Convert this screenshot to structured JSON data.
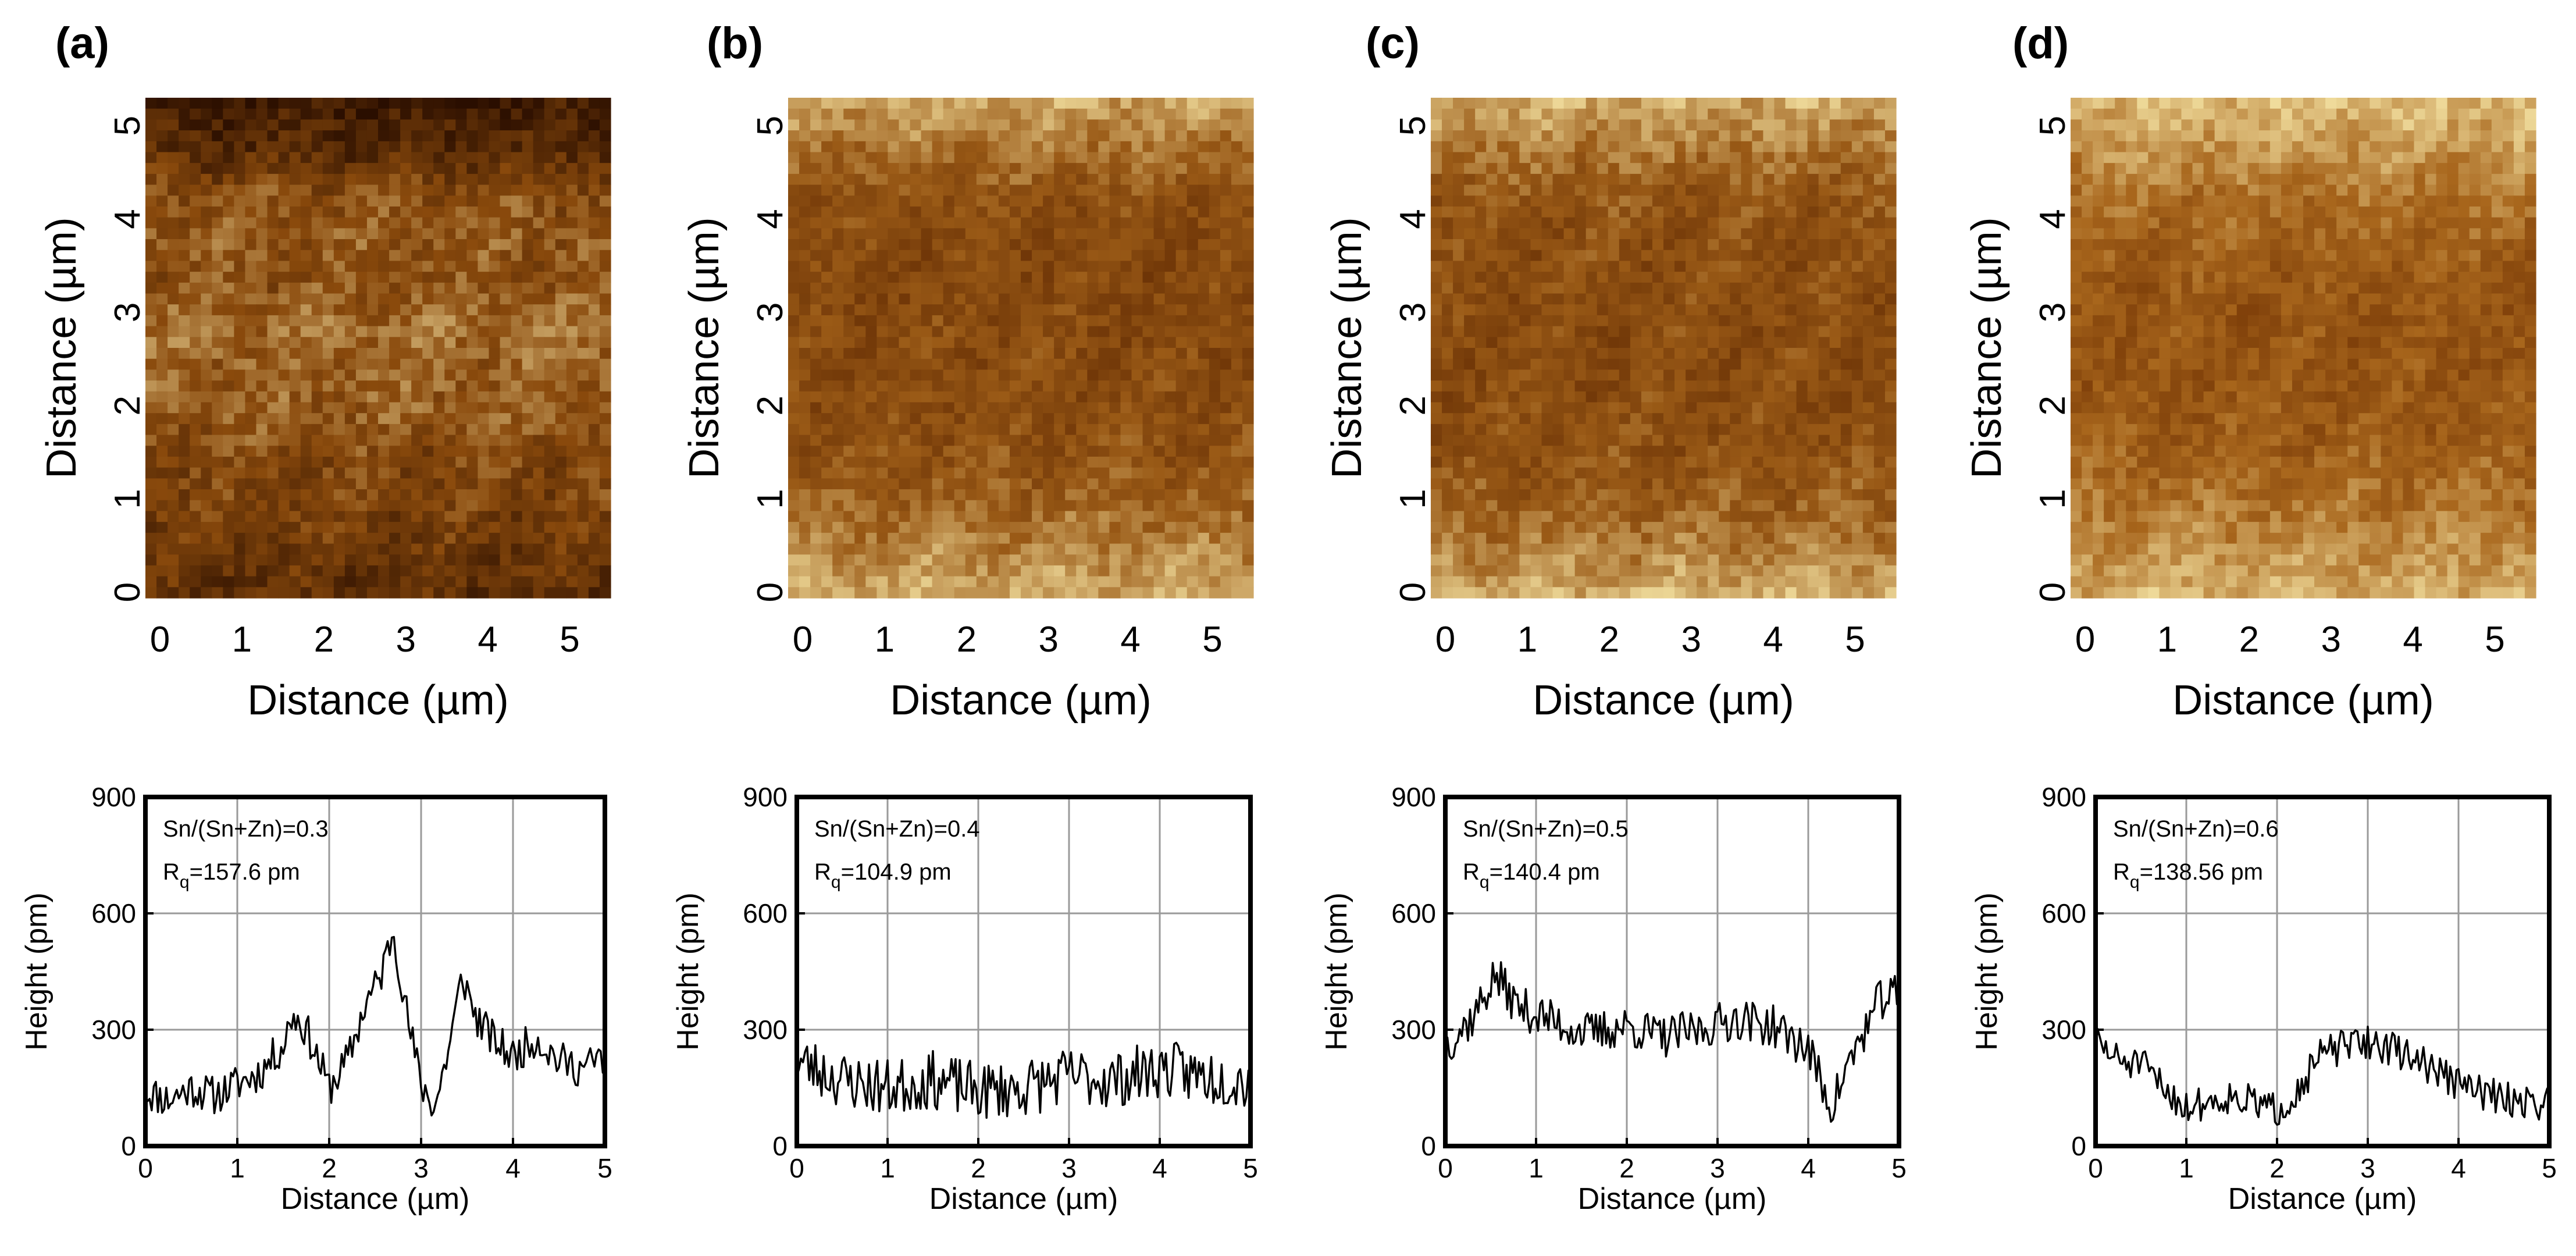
{
  "chart_data": [
    {
      "type": "heatmap",
      "panel_label": "(a)",
      "xlabel": "Distance (µm)",
      "ylabel": "Distance (µm)",
      "x_ticks": [
        "0",
        "1",
        "2",
        "3",
        "4",
        "5"
      ],
      "y_ticks": [
        "0",
        "1",
        "2",
        "3",
        "4",
        "5"
      ],
      "xlim": [
        0,
        5.5
      ],
      "ylim": [
        0,
        5.3
      ],
      "colors": {
        "dark": "#2a0e00",
        "mid": "#8a4a0c",
        "light": "#f2e0a2"
      },
      "brightness_by_row": [
        0.12,
        0.22,
        0.48,
        0.55,
        0.5,
        0.62,
        0.58,
        0.55,
        0.45,
        0.42,
        0.35,
        0.28
      ]
    },
    {
      "type": "heatmap",
      "panel_label": "(b)",
      "xlabel": "Distance (µm)",
      "ylabel": "Distance (µm)",
      "x_ticks": [
        "0",
        "1",
        "2",
        "3",
        "4",
        "5"
      ],
      "y_ticks": [
        "0",
        "1",
        "2",
        "3",
        "4",
        "5"
      ],
      "xlim": [
        0,
        5.5
      ],
      "ylim": [
        0,
        5.3
      ],
      "colors": {
        "dark": "#5a2400",
        "mid": "#9a5a16",
        "light": "#f0dc9c"
      },
      "brightness_by_row": [
        0.78,
        0.6,
        0.42,
        0.36,
        0.34,
        0.35,
        0.36,
        0.38,
        0.42,
        0.52,
        0.66,
        0.8
      ]
    },
    {
      "type": "heatmap",
      "panel_label": "(c)",
      "xlabel": "Distance (µm)",
      "ylabel": "Distance (µm)",
      "x_ticks": [
        "0",
        "1",
        "2",
        "3",
        "4",
        "5"
      ],
      "y_ticks": [
        "0",
        "1",
        "2",
        "3",
        "4",
        "5"
      ],
      "xlim": [
        0,
        5.5
      ],
      "ylim": [
        0,
        5.3
      ],
      "colors": {
        "dark": "#5a2400",
        "mid": "#9a5a16",
        "light": "#f0dc9c"
      },
      "brightness_by_row": [
        0.8,
        0.62,
        0.46,
        0.4,
        0.38,
        0.38,
        0.37,
        0.38,
        0.42,
        0.5,
        0.64,
        0.82
      ]
    },
    {
      "type": "heatmap",
      "panel_label": "(d)",
      "xlabel": "Distance (µm)",
      "ylabel": "Distance (µm)",
      "x_ticks": [
        "0",
        "1",
        "2",
        "3",
        "4",
        "5"
      ],
      "y_ticks": [
        "0",
        "1",
        "2",
        "3",
        "4",
        "5"
      ],
      "xlim": [
        0,
        5.5
      ],
      "ylim": [
        0,
        5.3
      ],
      "colors": {
        "dark": "#6a2c00",
        "mid": "#a8661c",
        "light": "#f0dc9c"
      },
      "brightness_by_row": [
        0.85,
        0.72,
        0.55,
        0.45,
        0.38,
        0.36,
        0.36,
        0.38,
        0.45,
        0.55,
        0.68,
        0.8
      ]
    },
    {
      "type": "line",
      "xlabel": "Distance (µm)",
      "ylabel": "Height (pm)",
      "xlim": [
        0,
        5
      ],
      "ylim": [
        0,
        900
      ],
      "x_ticks": [
        0,
        1,
        2,
        3,
        4,
        5
      ],
      "y_ticks": [
        0,
        300,
        600,
        900
      ],
      "grid": true,
      "annotation_line1": "Sn/(Sn+Zn)=0.3",
      "annotation_rq_symbol": "R",
      "annotation_rq_sub": "q",
      "annotation_rq_value": "=157.6 pm",
      "series": [
        {
          "x": [
            0,
            0.25,
            0.5,
            0.75,
            1.0,
            1.25,
            1.5,
            1.6,
            1.75,
            2.0,
            2.2,
            2.4,
            2.55,
            2.7,
            2.85,
            3.0,
            3.15,
            3.3,
            3.45,
            3.6,
            3.8,
            4.0,
            4.25,
            4.5,
            4.75,
            5.0
          ],
          "y": [
            140,
            120,
            150,
            130,
            160,
            190,
            260,
            340,
            300,
            150,
            220,
            370,
            430,
            560,
            330,
            160,
            100,
            250,
            440,
            330,
            270,
            230,
            280,
            220,
            200,
            230
          ],
          "noise": 50,
          "seed": 11
        }
      ]
    },
    {
      "type": "line",
      "xlabel": "Distance (µm)",
      "ylabel": "Height (pm)",
      "xlim": [
        0,
        5
      ],
      "ylim": [
        0,
        900
      ],
      "x_ticks": [
        0,
        1,
        2,
        3,
        4,
        5
      ],
      "y_ticks": [
        0,
        300,
        600,
        900
      ],
      "grid": true,
      "annotation_line1": "Sn/(Sn+Zn)=0.4",
      "annotation_rq_symbol": "R",
      "annotation_rq_sub": "q",
      "annotation_rq_value": "=104.9 pm",
      "series": [
        {
          "x": [
            0,
            0.5,
            1.0,
            1.5,
            2.0,
            2.5,
            3.0,
            3.5,
            4.0,
            4.5,
            5.0
          ],
          "y": [
            220,
            170,
            150,
            170,
            140,
            150,
            180,
            170,
            200,
            180,
            170
          ],
          "noise": 75,
          "seed": 23
        }
      ]
    },
    {
      "type": "line",
      "xlabel": "Distance (µm)",
      "ylabel": "Height (pm)",
      "xlim": [
        0,
        5
      ],
      "ylim": [
        0,
        900
      ],
      "x_ticks": [
        0,
        1,
        2,
        3,
        4,
        5
      ],
      "y_ticks": [
        0,
        300,
        600,
        900
      ],
      "grid": true,
      "annotation_line1": "Sn/(Sn+Zn)=0.5",
      "annotation_rq_symbol": "R",
      "annotation_rq_sub": "q",
      "annotation_rq_value": "=140.4 pm",
      "series": [
        {
          "x": [
            0,
            0.3,
            0.55,
            0.8,
            1.2,
            1.6,
            2.0,
            2.4,
            2.8,
            3.2,
            3.6,
            4.0,
            4.25,
            4.5,
            4.8,
            5.0
          ],
          "y": [
            260,
            330,
            440,
            360,
            320,
            290,
            310,
            280,
            300,
            330,
            310,
            250,
            100,
            240,
            380,
            390
          ],
          "noise": 55,
          "seed": 37
        }
      ]
    },
    {
      "type": "line",
      "xlabel": "Distance (µm)",
      "ylabel": "Height (pm)",
      "xlim": [
        0,
        5
      ],
      "ylim": [
        0,
        900
      ],
      "x_ticks": [
        0,
        1,
        2,
        3,
        4,
        5
      ],
      "y_ticks": [
        0,
        300,
        600,
        900
      ],
      "grid": true,
      "annotation_line1": "Sn/(Sn+Zn)=0.6",
      "annotation_rq_symbol": "R",
      "annotation_rq_sub": "q",
      "annotation_rq_value": "=138.56 pm",
      "series": [
        {
          "x": [
            0,
            0.25,
            0.5,
            0.75,
            1.0,
            1.5,
            2.0,
            2.25,
            2.5,
            3.0,
            3.5,
            4.0,
            4.5,
            5.0
          ],
          "y": [
            270,
            220,
            210,
            150,
            100,
            130,
            90,
            150,
            240,
            270,
            230,
            160,
            120,
            110
          ],
          "noise": 45,
          "seed": 51
        }
      ]
    }
  ]
}
